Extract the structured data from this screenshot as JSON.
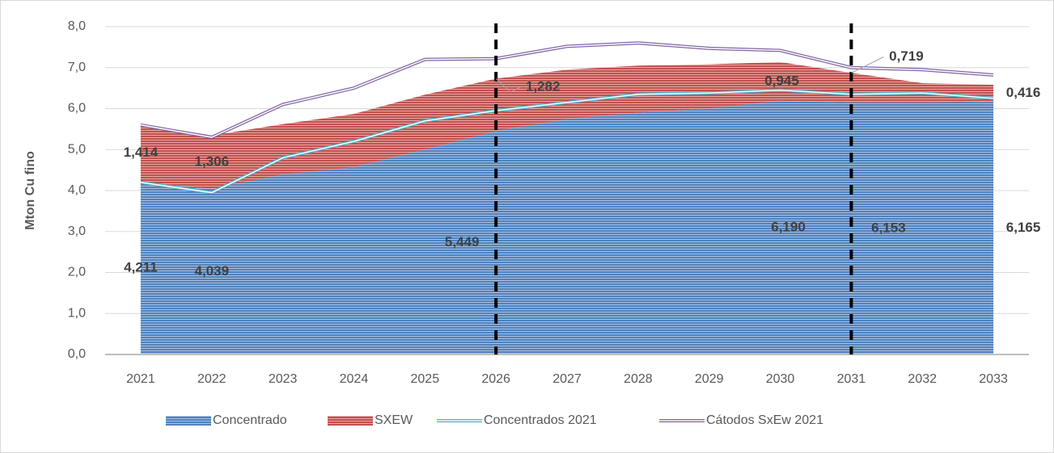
{
  "chart_data": {
    "type": "stacked_area_line",
    "y_axis_label": "Mton Cu fino",
    "categories": [
      "2021",
      "2022",
      "2023",
      "2024",
      "2025",
      "2026",
      "2027",
      "2028",
      "2029",
      "2030",
      "2031",
      "2032",
      "2033"
    ],
    "ylim": [
      0,
      8
    ],
    "yticks": [
      {
        "value": 0,
        "label": "0,0"
      },
      {
        "value": 1,
        "label": "1,0"
      },
      {
        "value": 2,
        "label": "2,0"
      },
      {
        "value": 3,
        "label": "3,0"
      },
      {
        "value": 4,
        "label": "4,0"
      },
      {
        "value": 5,
        "label": "5,0"
      },
      {
        "value": 6,
        "label": "6,0"
      },
      {
        "value": 7,
        "label": "7,0"
      },
      {
        "value": 8,
        "label": "8,0"
      }
    ],
    "grid": true,
    "legend": "bottom",
    "reference_lines": [
      "2026",
      "2031"
    ],
    "series": [
      {
        "name": "Concentrado",
        "kind": "area",
        "color": "#4f81bd",
        "values": [
          4.211,
          4.039,
          4.39,
          4.57,
          5.0,
          5.449,
          5.75,
          5.9,
          6.0,
          6.19,
          6.153,
          6.15,
          6.165
        ],
        "value_labels": [
          "4,211",
          "4,039",
          null,
          null,
          null,
          "5,449",
          null,
          null,
          null,
          "6,190",
          "6,153",
          null,
          "6,165"
        ]
      },
      {
        "name": "SXEW",
        "kind": "area",
        "color": "#c0504d",
        "values": [
          1.414,
          1.306,
          1.23,
          1.3,
          1.34,
          1.282,
          1.2,
          1.15,
          1.08,
          0.945,
          0.719,
          0.47,
          0.416
        ],
        "value_labels": [
          "1,414",
          "1,306",
          null,
          null,
          null,
          "1,282",
          null,
          null,
          null,
          "0,945",
          "0,719",
          null,
          "0,416"
        ]
      },
      {
        "name": "Concentrados 2021",
        "kind": "line",
        "color": "#4bacc6",
        "values": [
          4.2,
          3.95,
          4.8,
          5.2,
          5.7,
          5.95,
          6.15,
          6.35,
          6.38,
          6.45,
          6.35,
          6.38,
          6.25
        ]
      },
      {
        "name": "Cátodos SxEw 2021",
        "kind": "line",
        "color": "#8064a2",
        "values": [
          5.6,
          5.3,
          6.1,
          6.5,
          7.2,
          7.22,
          7.52,
          7.6,
          7.47,
          7.42,
          7.0,
          6.95,
          6.82
        ]
      }
    ]
  }
}
